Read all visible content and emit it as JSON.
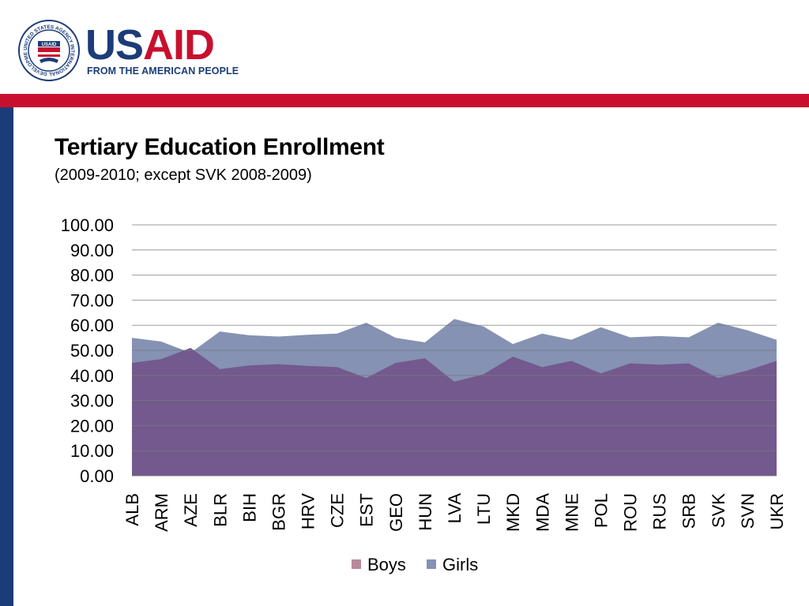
{
  "logo": {
    "word_us": "US",
    "word_aid": "AID",
    "tagline": "FROM THE AMERICAN PEOPLE",
    "seal_text": "UNITED STATES AGENCY INTERNATIONAL DEVELOPMENT",
    "seal_label": "USAID"
  },
  "colors": {
    "brand_red": "#c8102e",
    "brand_blue": "#1b3c78",
    "boys": "#bb8899",
    "girls": "#8592b3",
    "overlap": "#73598e"
  },
  "chart_data": {
    "type": "area",
    "title": "Tertiary Education Enrollment",
    "subtitle": "(2009-2010; except SVK 2008-2009)",
    "categories": [
      "ALB",
      "ARM",
      "AZE",
      "BLR",
      "BIH",
      "BGR",
      "HRV",
      "CZE",
      "EST",
      "GEO",
      "HUN",
      "LVA",
      "LTU",
      "MKD",
      "MDA",
      "MNE",
      "POL",
      "ROU",
      "RUS",
      "SRB",
      "SVK",
      "SVN",
      "UKR"
    ],
    "series": [
      {
        "name": "Boys",
        "values": [
          45.0,
          46.5,
          51.0,
          42.5,
          44.0,
          44.5,
          43.8,
          43.3,
          39.0,
          45.0,
          46.8,
          37.5,
          40.5,
          47.5,
          43.3,
          45.8,
          40.8,
          44.8,
          44.3,
          44.8,
          39.0,
          42.0,
          45.8
        ]
      },
      {
        "name": "Girls",
        "values": [
          55.0,
          53.5,
          49.0,
          57.5,
          56.0,
          55.5,
          56.2,
          56.7,
          61.0,
          55.0,
          53.2,
          62.5,
          59.5,
          52.5,
          56.7,
          54.2,
          59.2,
          55.2,
          55.7,
          55.2,
          61.0,
          58.0,
          54.2
        ]
      }
    ],
    "ylim": [
      0,
      100
    ],
    "yticks": [
      "0.00",
      "10.00",
      "20.00",
      "30.00",
      "40.00",
      "50.00",
      "60.00",
      "70.00",
      "80.00",
      "90.00",
      "100.00"
    ],
    "grid": true,
    "legend": "bottom"
  }
}
